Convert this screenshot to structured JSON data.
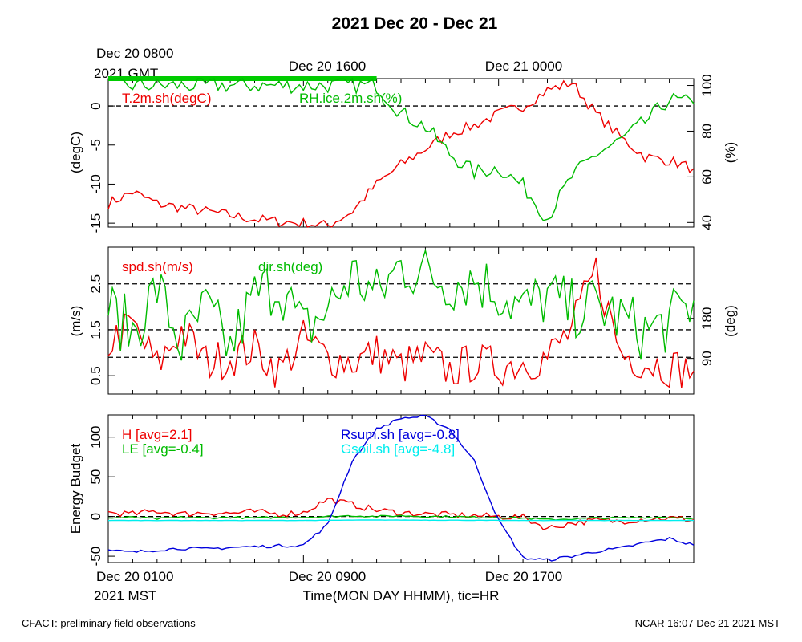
{
  "figure": {
    "title": "2021 Dec 20 - Dec 21",
    "gmt_ticks": [
      "Dec 20 1600",
      "Dec 21 0000"
    ],
    "gmt_origin_line1": "Dec 20 0800",
    "gmt_origin_line2": "2021 GMT",
    "mst_ticks": [
      "Dec 20 0900",
      "Dec 20 1700"
    ],
    "mst_origin_line1": "Dec 20 0100",
    "mst_origin_line2": "2021 MST",
    "xlabel": "Time(MON DAY HHMM), tic=HR",
    "footer_left": "CFACT: preliminary field observations",
    "footer_right": "NCAR 16:07 Dec 21 2021 MST"
  },
  "colors": {
    "red": "#ee0000",
    "green": "#00bb00",
    "blue": "#0000dd",
    "cyan": "#00eeee",
    "green_bar": "#00cc00"
  },
  "chart_data": [
    {
      "type": "line",
      "panel": "temperature-humidity",
      "x_range_hours": [
        0,
        24
      ],
      "ylabel": "(degC)",
      "ylim": [
        -15.5,
        3.5
      ],
      "yticks": [
        -15,
        -10,
        -5,
        0
      ],
      "y2label": "(%)",
      "y2lim": [
        38,
        103
      ],
      "y2ticks": [
        40,
        60,
        80,
        100
      ],
      "reference_lines": [
        0
      ],
      "annotation_bar_hours": [
        0,
        11
      ],
      "series": [
        {
          "name": "T.2m.sh(degC)",
          "axis": "left",
          "color": "red",
          "x": [
            0,
            1,
            2,
            3,
            4,
            5,
            6,
            7,
            8,
            9,
            10,
            11,
            12,
            13,
            14,
            15,
            16,
            17,
            18,
            19,
            20,
            21,
            22,
            23,
            24
          ],
          "values": [
            -12.5,
            -11.0,
            -12.5,
            -13.0,
            -13.5,
            -14.0,
            -14.5,
            -14.8,
            -15.0,
            -15.3,
            -13.5,
            -10.0,
            -7.5,
            -5.5,
            -3.5,
            -2.5,
            -1.0,
            0.0,
            2.0,
            3.0,
            -1.0,
            -4.0,
            -6.5,
            -7.0,
            -8.0
          ]
        },
        {
          "name": "RH.ice.2m.sh(%)",
          "axis": "right",
          "color": "green",
          "x": [
            0,
            1,
            2,
            3,
            4,
            5,
            6,
            7,
            8,
            9,
            10,
            11,
            12,
            13,
            14,
            15,
            16,
            17,
            18,
            19,
            20,
            21,
            22,
            23,
            24
          ],
          "values": [
            100,
            100,
            100,
            100,
            100,
            100,
            100,
            100,
            100,
            100,
            100,
            100,
            88,
            82,
            70,
            62,
            64,
            56,
            42,
            60,
            70,
            76,
            84,
            94,
            92
          ]
        }
      ]
    },
    {
      "type": "line",
      "panel": "wind",
      "x_range_hours": [
        0,
        24
      ],
      "ylabel": "(m/s)",
      "ylim": [
        0.1,
        3.3
      ],
      "yticks": [
        0.5,
        1.5,
        2.5
      ],
      "y2label": "(deg)",
      "y2lim": [
        10,
        340
      ],
      "y2ticks": [
        90,
        180
      ],
      "reference_lines": [
        0.9,
        1.5,
        2.5
      ],
      "series": [
        {
          "name": "spd.sh(m/s)",
          "axis": "left",
          "color": "red",
          "x": [
            0,
            1,
            2,
            3,
            4,
            5,
            6,
            7,
            8,
            9,
            10,
            11,
            12,
            13,
            14,
            15,
            16,
            17,
            18,
            19,
            20,
            21,
            22,
            23,
            24
          ],
          "values": [
            1.2,
            1.6,
            0.7,
            1.5,
            0.8,
            0.9,
            1.1,
            0.6,
            1.3,
            0.9,
            0.8,
            1.0,
            0.7,
            0.9,
            0.6,
            0.8,
            0.7,
            0.8,
            0.9,
            1.5,
            2.8,
            1.0,
            0.8,
            0.7,
            0.6
          ]
        },
        {
          "name": "dir.sh(deg)",
          "axis": "right",
          "color": "green",
          "x": [
            0,
            1,
            2,
            3,
            4,
            5,
            6,
            7,
            8,
            9,
            10,
            11,
            12,
            13,
            14,
            15,
            16,
            17,
            18,
            19,
            20,
            21,
            22,
            23,
            24
          ],
          "values": [
            200,
            150,
            250,
            120,
            200,
            110,
            230,
            260,
            150,
            200,
            280,
            230,
            300,
            280,
            260,
            270,
            240,
            200,
            230,
            200,
            210,
            180,
            150,
            170,
            220
          ]
        }
      ]
    },
    {
      "type": "line",
      "panel": "energy-budget",
      "x_range_hours": [
        0,
        24
      ],
      "ylabel": "Energy Budget",
      "ylim": [
        -58,
        128
      ],
      "yticks": [
        -50,
        0,
        50,
        100
      ],
      "reference_lines": [
        0
      ],
      "series": [
        {
          "name": "H",
          "avg_label": "[avg=2.1]",
          "color": "red",
          "x": [
            0,
            1,
            2,
            3,
            4,
            5,
            6,
            7,
            8,
            9,
            10,
            11,
            12,
            13,
            14,
            15,
            16,
            17,
            18,
            19,
            20,
            21,
            22,
            23,
            24
          ],
          "values": [
            5,
            3,
            7,
            3,
            5,
            4,
            6,
            3,
            5,
            22,
            15,
            8,
            5,
            3,
            2,
            1,
            0,
            -1,
            -15,
            -8,
            -5,
            -6,
            -3,
            -2,
            -4
          ]
        },
        {
          "name": "LE",
          "avg_label": "[avg=-0.4]",
          "color": "green",
          "x": [
            0,
            1,
            2,
            3,
            4,
            5,
            6,
            7,
            8,
            9,
            10,
            11,
            12,
            13,
            14,
            15,
            16,
            17,
            18,
            19,
            20,
            21,
            22,
            23,
            24
          ],
          "values": [
            -2,
            -1,
            -3,
            -1,
            -2,
            -1,
            -2,
            -1,
            -1,
            0,
            1,
            0,
            1,
            0,
            0,
            -1,
            -1,
            -2,
            -4,
            -3,
            -2,
            -2,
            -1,
            -1,
            -2
          ]
        },
        {
          "name": "Rsum.sh",
          "avg_label": "[avg=-0.8]",
          "color": "blue",
          "x": [
            0,
            1,
            2,
            3,
            4,
            5,
            6,
            7,
            8,
            9,
            10,
            11,
            12,
            13,
            14,
            15,
            16,
            17,
            18,
            19,
            20,
            21,
            22,
            23,
            24
          ],
          "values": [
            -43,
            -45,
            -42,
            -40,
            -41,
            -39,
            -38,
            -37,
            -36,
            -10,
            70,
            110,
            124,
            126,
            110,
            70,
            -5,
            -52,
            -55,
            -50,
            -44,
            -40,
            -33,
            -28,
            -36
          ]
        },
        {
          "name": "Gsoil.sh",
          "avg_label": "[avg=-4.8]",
          "color": "cyan",
          "x": [
            0,
            1,
            2,
            3,
            4,
            5,
            6,
            7,
            8,
            9,
            10,
            11,
            12,
            13,
            14,
            15,
            16,
            17,
            18,
            19,
            20,
            21,
            22,
            23,
            24
          ],
          "values": [
            -5,
            -5,
            -5,
            -5,
            -5,
            -5,
            -5,
            -5,
            -5,
            -4.8,
            -4.6,
            -4.5,
            -4.5,
            -4.6,
            -4.7,
            -4.8,
            -5,
            -5,
            -5,
            -5,
            -5,
            -5,
            -5,
            -5,
            -5
          ]
        }
      ]
    }
  ]
}
